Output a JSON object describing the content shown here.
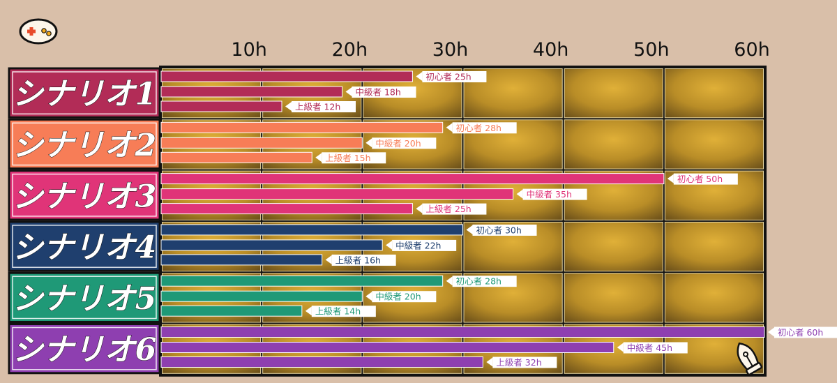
{
  "chart_data": {
    "type": "bar",
    "orientation": "horizontal",
    "title": "",
    "xlabel": "",
    "ylabel": "",
    "xlim": [
      0,
      60
    ],
    "x_ticks": [
      "10h",
      "20h",
      "30h",
      "40h",
      "50h",
      "60h"
    ],
    "levels": [
      "初心者",
      "中級者",
      "上級者"
    ],
    "unit": "h",
    "scenarios": [
      {
        "name": "シナリオ1",
        "color": "#b22c57",
        "values": [
          25,
          18,
          12
        ]
      },
      {
        "name": "シナリオ2",
        "color": "#f77d57",
        "values": [
          28,
          20,
          15
        ]
      },
      {
        "name": "シナリオ3",
        "color": "#e03478",
        "values": [
          50,
          35,
          25
        ]
      },
      {
        "name": "シナリオ4",
        "color": "#1f3f6e",
        "values": [
          30,
          22,
          16
        ]
      },
      {
        "name": "シナリオ5",
        "color": "#1f9977",
        "values": [
          28,
          20,
          14
        ]
      },
      {
        "name": "シナリオ6",
        "color": "#8e3fb0",
        "values": [
          60,
          45,
          32
        ]
      }
    ],
    "grid": true,
    "legend": "none"
  },
  "icons": {
    "top_left": "gamepad-icon",
    "bottom_right": "fountain-pen-nib-icon"
  },
  "colors": {
    "background": "#d9bfa9",
    "grid_gold": "#b88c2a",
    "grid_lines": "#1b1b1b"
  }
}
